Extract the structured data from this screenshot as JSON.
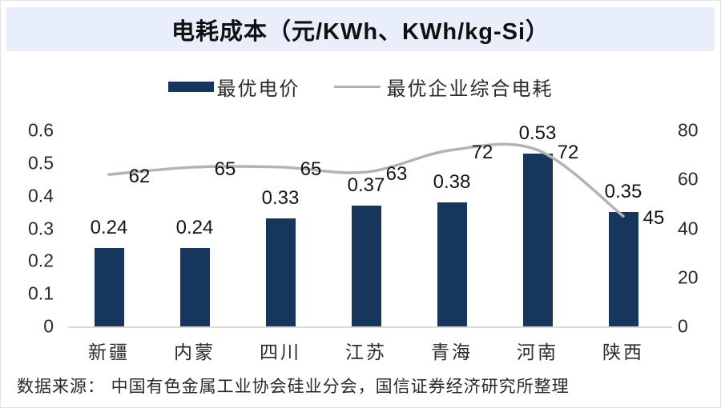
{
  "title": "电耗成本（元/KWh、KWh/kg-Si）",
  "legend": {
    "bar_label": "最优电价",
    "line_label": "最优企业综合电耗"
  },
  "footer": "数据来源： 中国有色金属工业协会硅业分会，国信证券经济研究所整理",
  "colors": {
    "bar": "#17365d",
    "line": "#b3b3b3",
    "title_band": "#e8eefa",
    "baseline": "#d9d9d9",
    "axis_text": "#2b2b2b"
  },
  "chart_data": {
    "type": "bar",
    "subtype": "bar+line combo, dual axis",
    "title": "电耗成本（元/KWh、KWh/kg-Si）",
    "categories": [
      "新疆",
      "内蒙",
      "四川",
      "江苏",
      "青海",
      "河南",
      "陕西"
    ],
    "series": [
      {
        "name": "最优电价",
        "type": "bar",
        "axis": "left",
        "values": [
          0.24,
          0.24,
          0.33,
          0.37,
          0.38,
          0.53,
          0.35
        ]
      },
      {
        "name": "最优企业综合电耗",
        "type": "line",
        "axis": "right",
        "values": [
          62,
          65,
          65,
          63,
          72,
          72,
          45
        ]
      }
    ],
    "left_axis": {
      "ticks": [
        0,
        0.1,
        0.2,
        0.3,
        0.4,
        0.5,
        0.6
      ],
      "range": [
        0,
        0.6
      ]
    },
    "right_axis": {
      "ticks": [
        0,
        20,
        40,
        60,
        80
      ],
      "range": [
        0,
        80
      ]
    },
    "legend_position": "top",
    "grid": false,
    "source_note": "数据来源： 中国有色金属工业协会硅业分会，国信证券经济研究所整理"
  }
}
